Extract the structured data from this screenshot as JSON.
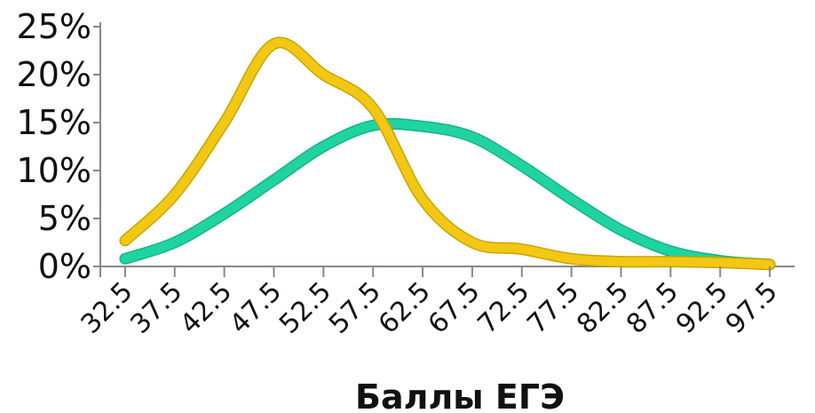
{
  "chart_data": {
    "type": "line",
    "xlabel": "Баллы ЕГЭ",
    "ylabel": "",
    "categories": [
      "32.5",
      "37.5",
      "42.5",
      "47.5",
      "52.5",
      "57.5",
      "62.5",
      "67.5",
      "72.5",
      "77.5",
      "82.5",
      "87.5",
      "92.5",
      "97.5"
    ],
    "x": [
      32.5,
      37.5,
      42.5,
      47.5,
      52.5,
      57.5,
      62.5,
      67.5,
      72.5,
      77.5,
      82.5,
      87.5,
      92.5,
      97.5
    ],
    "xlim": [
      30,
      100
    ],
    "ylim": [
      0,
      0.25
    ],
    "y_tick_values": [
      0,
      0.05,
      0.1,
      0.15,
      0.2,
      0.25
    ],
    "y_tick_labels": [
      "0%",
      "5%",
      "10%",
      "15%",
      "20%",
      "25%"
    ],
    "grid": false,
    "series": [
      {
        "color": "#1fd4a0",
        "values": [
          0.008,
          0.025,
          0.055,
          0.09,
          0.125,
          0.147,
          0.146,
          0.135,
          0.105,
          0.07,
          0.038,
          0.016,
          0.006,
          0.002
        ]
      },
      {
        "color": "#f2c814",
        "values": [
          0.027,
          0.075,
          0.15,
          0.232,
          0.2,
          0.165,
          0.07,
          0.025,
          0.018,
          0.008,
          0.005,
          0.005,
          0.004,
          0.002
        ]
      }
    ]
  }
}
